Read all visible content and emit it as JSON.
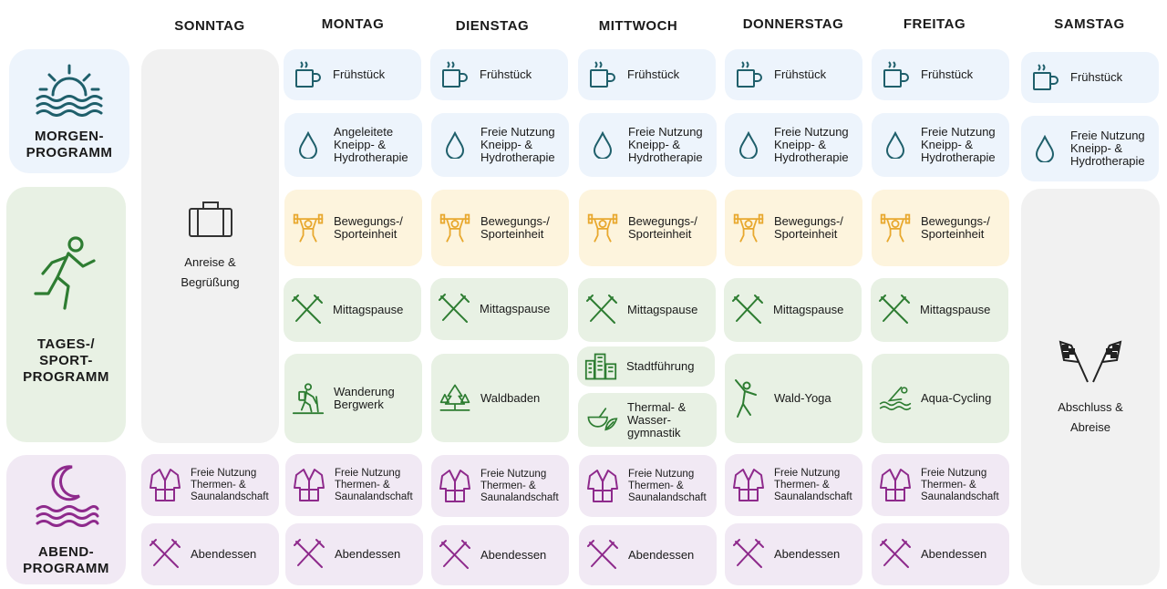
{
  "days": [
    "SONNTAG",
    "MONTAG",
    "DIENSTAG",
    "MITTWOCH",
    "DONNERSTAG",
    "FREITAG",
    "SAMSTAG"
  ],
  "sections": {
    "morning": "MORGEN-\nPROGRAMM",
    "day": "TAGES-/\nSPORT-\nPROGRAMM",
    "evening": "ABEND-\nPROGRAMM"
  },
  "sunday_arrival": "Anreise &\nBegrüßung",
  "saturday_departure": "Abschluss &\nAbreise",
  "activities": {
    "breakfast": "Frühstück",
    "kneipp_guided": "Angeleitete\nKneipp- &\nHydrotherapie",
    "kneipp_free": "Freie Nutzung\nKneipp- &\nHydrotherapie",
    "sport": "Bewegungs-/\nSporteinheit",
    "lunch": "Mittagspause",
    "hike": "Wanderung\nBergwerk",
    "forest_bath": "Waldbaden",
    "city_tour": "Stadtführung",
    "thermal_gym": "Thermal- &\nWasser-\ngymnastik",
    "forest_yoga": "Wald-Yoga",
    "aqua_cycling": "Aqua-Cycling",
    "sauna": "Freie Nutzung\nThermen- &\nSaunalandschaft",
    "dinner": "Abendessen"
  },
  "colors": {
    "teal": "#1f5f6b",
    "green": "#2e7d32",
    "yellow": "#e8a82e",
    "purple": "#8e2a8c"
  }
}
